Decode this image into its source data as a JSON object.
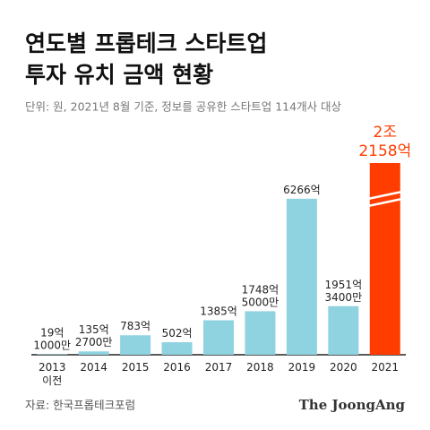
{
  "chart_data": {
    "type": "bar",
    "title": [
      "연도별 프롭테크 스타트업",
      "투자 유치 금액 현황"
    ],
    "subtitle": "단위: 원, 2021년 8월 기준, 정보를 공유한 스타트업 114개사 대상",
    "categories": [
      "2013 이전",
      "2014",
      "2015",
      "2016",
      "2017",
      "2018",
      "2019",
      "2020",
      "2021"
    ],
    "values": [
      19.1,
      135.27,
      783,
      502,
      1385,
      1748.5,
      6266,
      1951.34,
      22158
    ],
    "value_labels": [
      "19억 1000만",
      "135억 2700만",
      "783억",
      "502억",
      "1385억",
      "1748억 5000만",
      "6266억",
      "1951억 3400만",
      "2조 2158억"
    ],
    "color": "#8fd3e0",
    "highlight_color": "#ff3d00",
    "highlight_index": 8,
    "ylim": [
      0,
      7700
    ],
    "axis_break": true,
    "source": "자료: 한국프롭테크포럼",
    "brand": "The JoongAng"
  }
}
